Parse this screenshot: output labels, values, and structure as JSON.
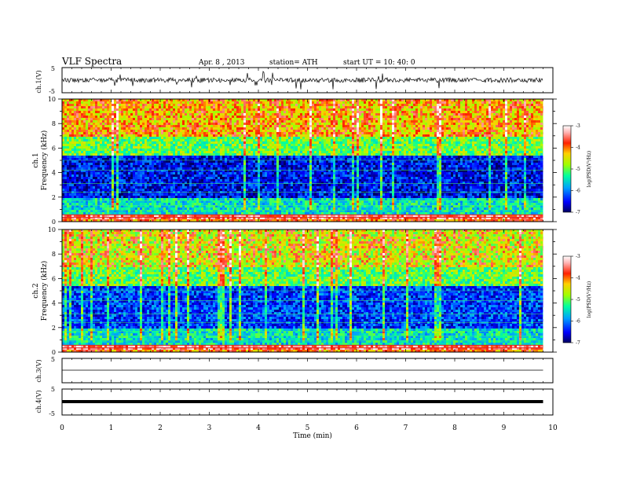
{
  "header": {
    "title": "VLF  Spectra",
    "date": "Apr. 8 , 2013",
    "station": "station= ATH",
    "start": "start  UT  =   10: 40: 0"
  },
  "x_axis": {
    "label": "Time  (min)",
    "ticks": [
      "0",
      "1",
      "2",
      "3",
      "4",
      "5",
      "6",
      "7",
      "8",
      "9",
      "10"
    ]
  },
  "panels": {
    "ch1_trace": {
      "ylabel": "ch.1(V)",
      "ticks": [
        "5",
        "-5"
      ]
    },
    "ch1_spec": {
      "ylabel_a": "ch.1",
      "ylabel_b": "Frequency  (kHz)",
      "ticks": [
        "10",
        "8",
        "6",
        "4",
        "2",
        "0"
      ]
    },
    "ch2_spec": {
      "ylabel_a": "ch.2",
      "ylabel_b": "Frequency  (kHz)",
      "ticks": [
        "10",
        "8",
        "6",
        "4",
        "2",
        "0"
      ]
    },
    "ch3_trace": {
      "ylabel": "ch.3(V)",
      "ticks": [
        "5",
        "-5"
      ]
    },
    "ch4_trace": {
      "ylabel": "ch.4(V)",
      "ticks": [
        "5",
        "-5"
      ]
    }
  },
  "colorbar": {
    "label": "log(PSD(V²/Hz)",
    "ticks": [
      "-3",
      "-4",
      "-5",
      "-6",
      "-7"
    ],
    "colors": [
      "#000080",
      "#0000ff",
      "#00c0ff",
      "#00ff80",
      "#c0ff00",
      "#ffc000",
      "#ff0000",
      "#ffffff"
    ]
  },
  "chart_data": {
    "type": "heatmap",
    "title": "VLF  Spectra",
    "xlabel": "Time  (min)",
    "xlim": [
      0,
      10
    ],
    "data_end_min": 9.8,
    "channels": [
      {
        "name": "ch.1",
        "ylabel": "Frequency  (kHz)",
        "ylim": [
          0,
          10
        ],
        "band_log_psd": [
          {
            "f": [
              0.0,
              0.3
            ],
            "log_psd": -4.0
          },
          {
            "f": [
              0.3,
              0.7
            ],
            "log_psd": -3.5
          },
          {
            "f": [
              0.7,
              2.0
            ],
            "log_psd": -5.5
          },
          {
            "f": [
              2.0,
              5.5
            ],
            "log_psd": -6.5
          },
          {
            "f": [
              5.5,
              7.0
            ],
            "log_psd": -5.0
          },
          {
            "f": [
              7.0,
              10.0
            ],
            "log_psd": -4.3
          }
        ]
      },
      {
        "name": "ch.2",
        "ylabel": "Frequency  (kHz)",
        "ylim": [
          0,
          10
        ],
        "band_log_psd": [
          {
            "f": [
              0.0,
              0.3
            ],
            "log_psd": -4.0
          },
          {
            "f": [
              0.3,
              0.7
            ],
            "log_psd": -3.5
          },
          {
            "f": [
              0.7,
              2.0
            ],
            "log_psd": -5.5
          },
          {
            "f": [
              2.0,
              5.5
            ],
            "log_psd": -6.3
          },
          {
            "f": [
              5.5,
              7.0
            ],
            "log_psd": -5.0
          },
          {
            "f": [
              7.0,
              10.0
            ],
            "log_psd": -4.6
          }
        ]
      }
    ],
    "colorbar_range": [
      -7,
      -3
    ],
    "waveforms": [
      {
        "name": "ch.1(V)",
        "ylim": [
          -5,
          5
        ],
        "level": 0
      },
      {
        "name": "ch.3(V)",
        "ylim": [
          -5,
          5
        ],
        "level": 0
      },
      {
        "name": "ch.4(V)",
        "ylim": [
          -5,
          5
        ],
        "level": 0
      }
    ]
  }
}
